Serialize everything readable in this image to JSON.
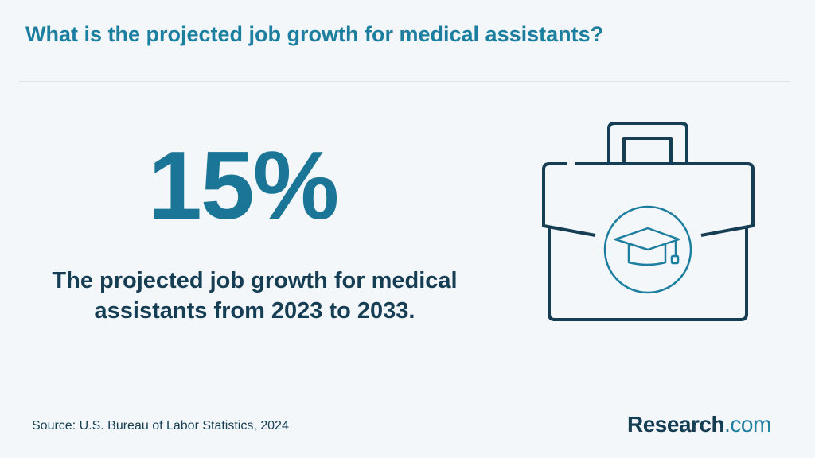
{
  "title": "What is the projected job growth for medical assistants?",
  "stat": {
    "value": "15%",
    "description": "The projected job growth for medical assistants from 2023 to 2033."
  },
  "footer": {
    "source": "Source: U.S. Bureau of Labor Statistics, 2024",
    "logo_main": "Research",
    "logo_tld": ".com"
  },
  "icons": {
    "main": "briefcase-icon",
    "inner": "graduation-cap-icon"
  },
  "colors": {
    "accent": "#1d7fa0",
    "dark": "#153e55",
    "background": "#f4f7f9"
  }
}
